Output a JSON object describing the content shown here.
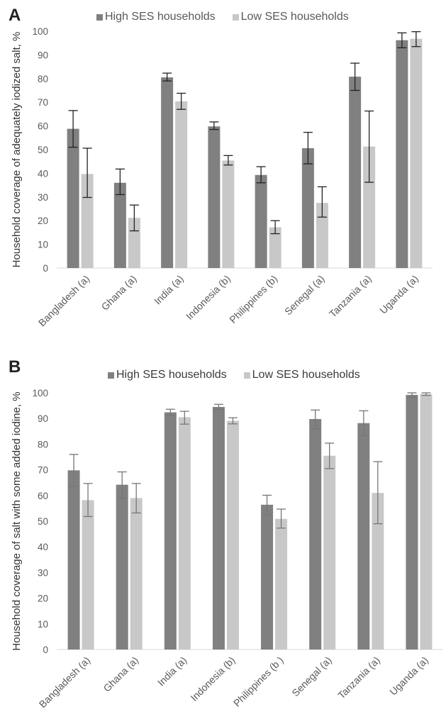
{
  "chart_data": [
    {
      "panel_label": "A",
      "type": "bar",
      "ylabel": "Household coverage of adequately iodized salt, %",
      "ylim": [
        0,
        100
      ],
      "yticks": [
        0,
        10,
        20,
        30,
        40,
        50,
        60,
        70,
        80,
        90,
        100
      ],
      "categories": [
        "Bangladesh (a)",
        "Ghana (a)",
        "India (a)",
        "Indonesia (b)",
        "Philippines (b)",
        "Senegal (a)",
        "Tanzania (a)",
        "Uganda (a)"
      ],
      "legend_position": "top",
      "series": [
        {
          "name": "High SES households",
          "color": "#808080",
          "values": [
            58.8,
            36.0,
            80.5,
            59.8,
            39.3,
            50.6,
            80.8,
            96.2
          ],
          "err_low": [
            51.0,
            31.0,
            79.0,
            58.5,
            36.0,
            44.0,
            75.0,
            93.0
          ],
          "err_high": [
            66.5,
            41.8,
            82.3,
            61.7,
            42.8,
            57.3,
            86.5,
            99.3
          ]
        },
        {
          "name": "Low SES households",
          "color": "#c8c8c8",
          "values": [
            39.7,
            21.2,
            70.4,
            45.4,
            17.2,
            27.5,
            51.3,
            96.8
          ],
          "err_low": [
            29.8,
            15.7,
            67.0,
            43.5,
            14.5,
            21.5,
            36.2,
            93.5
          ],
          "err_high": [
            50.6,
            26.6,
            73.8,
            47.5,
            20.0,
            34.3,
            66.3,
            99.8
          ]
        }
      ]
    },
    {
      "panel_label": "B",
      "type": "bar",
      "ylabel": "Household coverage of salt with some added iodine, %",
      "ylim": [
        0,
        100
      ],
      "yticks": [
        0,
        10,
        20,
        30,
        40,
        50,
        60,
        70,
        80,
        90,
        100
      ],
      "categories": [
        "Bangladesh (a)",
        "Ghana (a)",
        "India (a)",
        "Indonesia (b)",
        "Philippines (b )",
        "Senegal (a)",
        "Tanzania (a)",
        "Uganda (a)"
      ],
      "legend_position": "top",
      "series": [
        {
          "name": "High SES households",
          "color": "#808080",
          "values": [
            69.8,
            64.2,
            92.4,
            94.5,
            56.4,
            89.8,
            88.2,
            99.2
          ],
          "err_low": [
            63.5,
            59.0,
            91.2,
            93.5,
            52.5,
            86.0,
            83.3,
            98.3
          ],
          "err_high": [
            76.0,
            69.2,
            93.6,
            95.5,
            60.1,
            93.3,
            93.0,
            100.0
          ]
        },
        {
          "name": "Low SES households",
          "color": "#c8c8c8",
          "values": [
            58.2,
            59.0,
            90.5,
            89.1,
            50.9,
            75.5,
            61.0,
            99.5
          ],
          "err_low": [
            51.8,
            53.2,
            87.8,
            87.9,
            47.3,
            70.5,
            49.0,
            99.0
          ],
          "err_high": [
            64.7,
            64.7,
            92.8,
            90.3,
            54.7,
            80.4,
            73.2,
            100.0
          ]
        }
      ]
    }
  ]
}
